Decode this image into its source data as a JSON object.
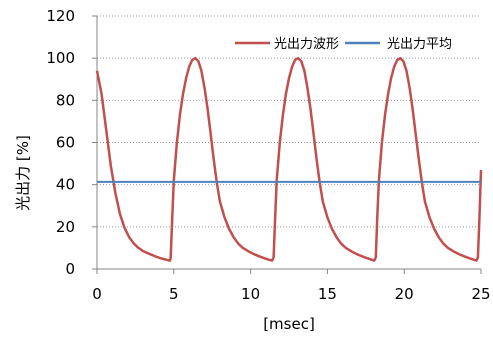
{
  "chart_data": {
    "type": "line",
    "xlabel": "[msec]",
    "ylabel": "光出力 [%]",
    "xlim": [
      0,
      25
    ],
    "ylim": [
      0,
      120
    ],
    "xticks": [
      "0",
      "5",
      "10",
      "15",
      "20",
      "25"
    ],
    "yticks": [
      "0",
      "20",
      "40",
      "60",
      "80",
      "100",
      "120"
    ],
    "grid": {
      "horizontal": true,
      "vertical": false,
      "style": "dotted"
    },
    "legend": {
      "placement": "top-right"
    },
    "series": [
      {
        "name": "光出力波形",
        "color": "#c0504d",
        "points": [
          [
            0.0,
            94.0
          ],
          [
            0.3,
            83.0
          ],
          [
            0.6,
            66.0
          ],
          [
            0.9,
            49.0
          ],
          [
            1.2,
            36.0
          ],
          [
            1.5,
            26.0
          ],
          [
            1.8,
            19.5
          ],
          [
            2.1,
            15.0
          ],
          [
            2.4,
            12.0
          ],
          [
            2.7,
            10.0
          ],
          [
            3.0,
            8.5
          ],
          [
            3.4,
            7.2
          ],
          [
            3.8,
            6.0
          ],
          [
            4.2,
            5.0
          ],
          [
            4.6,
            4.2
          ],
          [
            4.75,
            4.0
          ],
          [
            4.8,
            5.5
          ],
          [
            4.9,
            25.0
          ],
          [
            5.0,
            42.0
          ],
          [
            5.2,
            60.0
          ],
          [
            5.4,
            73.0
          ],
          [
            5.6,
            83.0
          ],
          [
            5.8,
            90.5
          ],
          [
            6.0,
            96.0
          ],
          [
            6.2,
            99.2
          ],
          [
            6.4,
            100.0
          ],
          [
            6.6,
            98.5
          ],
          [
            6.8,
            94.0
          ],
          [
            7.0,
            86.0
          ],
          [
            7.2,
            76.0
          ],
          [
            7.4,
            64.0
          ],
          [
            7.6,
            52.0
          ],
          [
            7.8,
            41.0
          ],
          [
            8.0,
            32.0
          ],
          [
            8.3,
            24.5
          ],
          [
            8.6,
            19.0
          ],
          [
            8.9,
            15.0
          ],
          [
            9.2,
            12.0
          ],
          [
            9.5,
            10.0
          ],
          [
            9.9,
            8.2
          ],
          [
            10.3,
            6.8
          ],
          [
            10.7,
            5.6
          ],
          [
            11.1,
            4.6
          ],
          [
            11.4,
            4.0
          ],
          [
            11.5,
            5.5
          ],
          [
            11.6,
            25.0
          ],
          [
            11.7,
            42.0
          ],
          [
            11.9,
            60.0
          ],
          [
            12.1,
            73.0
          ],
          [
            12.3,
            83.0
          ],
          [
            12.5,
            90.5
          ],
          [
            12.7,
            96.0
          ],
          [
            12.9,
            99.2
          ],
          [
            13.1,
            100.0
          ],
          [
            13.3,
            98.5
          ],
          [
            13.5,
            94.0
          ],
          [
            13.7,
            86.0
          ],
          [
            13.9,
            76.0
          ],
          [
            14.1,
            64.0
          ],
          [
            14.3,
            52.0
          ],
          [
            14.5,
            41.0
          ],
          [
            14.7,
            32.0
          ],
          [
            15.0,
            24.5
          ],
          [
            15.3,
            19.0
          ],
          [
            15.6,
            15.0
          ],
          [
            15.9,
            12.0
          ],
          [
            16.2,
            10.0
          ],
          [
            16.6,
            8.2
          ],
          [
            17.0,
            6.8
          ],
          [
            17.4,
            5.6
          ],
          [
            17.8,
            4.6
          ],
          [
            18.05,
            4.0
          ],
          [
            18.15,
            5.5
          ],
          [
            18.25,
            25.0
          ],
          [
            18.35,
            42.0
          ],
          [
            18.55,
            60.0
          ],
          [
            18.75,
            73.0
          ],
          [
            18.95,
            83.0
          ],
          [
            19.15,
            90.5
          ],
          [
            19.35,
            96.0
          ],
          [
            19.55,
            99.2
          ],
          [
            19.75,
            100.0
          ],
          [
            19.95,
            98.5
          ],
          [
            20.15,
            94.0
          ],
          [
            20.35,
            86.0
          ],
          [
            20.55,
            76.0
          ],
          [
            20.75,
            64.0
          ],
          [
            20.95,
            52.0
          ],
          [
            21.15,
            41.0
          ],
          [
            21.35,
            32.0
          ],
          [
            21.65,
            24.5
          ],
          [
            21.95,
            19.0
          ],
          [
            22.25,
            15.0
          ],
          [
            22.55,
            12.0
          ],
          [
            22.85,
            10.0
          ],
          [
            23.25,
            8.2
          ],
          [
            23.65,
            6.8
          ],
          [
            24.05,
            5.6
          ],
          [
            24.45,
            4.6
          ],
          [
            24.7,
            4.0
          ],
          [
            24.8,
            5.5
          ],
          [
            24.9,
            25.0
          ],
          [
            25.0,
            47.0
          ]
        ]
      },
      {
        "name": "光出力平均",
        "color": "#4f81bd",
        "points": [
          [
            0,
            41.3
          ],
          [
            25,
            41.3
          ]
        ]
      }
    ]
  }
}
